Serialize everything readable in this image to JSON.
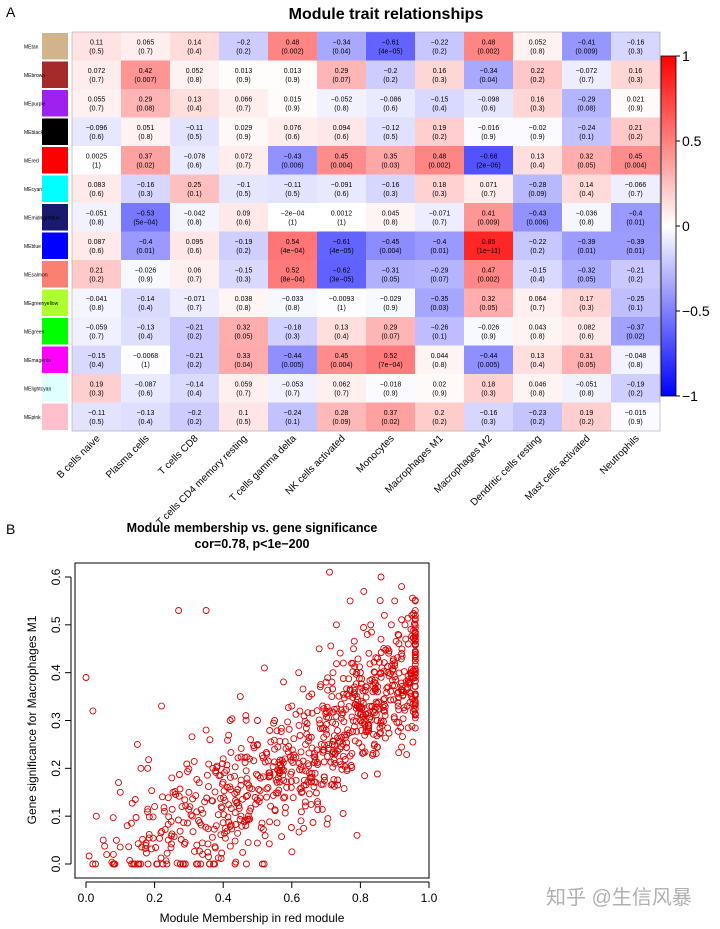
{
  "panel_labels": {
    "a": "A",
    "b": "B"
  },
  "watermark": "知乎 @生信风暴",
  "chart_data": [
    {
      "type": "heatmap",
      "title": "Module trait relationships",
      "rows": [
        "MEtan",
        "MEbrown",
        "MEpurple",
        "MEblack",
        "MEred",
        "MEcyan",
        "MEmidnightblue",
        "MEblue",
        "MEsalmon",
        "MEgreenyellow",
        "MEgreen",
        "MEmagenta",
        "MElightcyan",
        "MEpink"
      ],
      "row_colors": [
        "#d2b48c",
        "#a52a2a",
        "#a020f0",
        "#000000",
        "#ff0000",
        "#00ffff",
        "#191970",
        "#0000ff",
        "#fa8072",
        "#adff2f",
        "#00ff00",
        "#ff00ff",
        "#e0ffff",
        "#ffc0cb"
      ],
      "columns": [
        "B cells naive",
        "Plasma cells",
        "T cells CD8",
        "T cells CD4 memory resting",
        "T cells gamma delta",
        "NK cells activated",
        "Monocytes",
        "Macrophages M1",
        "Macrophages M2",
        "Dendritic cells resting",
        "Mast cells activated",
        "Neutrophils"
      ],
      "values": [
        [
          0.11,
          0.065,
          0.14,
          -0.2,
          0.48,
          -0.34,
          -0.61,
          -0.22,
          0.48,
          0.052,
          -0.41,
          -0.16
        ],
        [
          0.072,
          0.42,
          0.052,
          0.013,
          0.013,
          0.29,
          -0.2,
          0.16,
          -0.34,
          0.22,
          -0.072,
          0.16
        ],
        [
          0.055,
          0.29,
          0.13,
          0.066,
          0.015,
          -0.052,
          -0.086,
          -0.15,
          -0.098,
          0.16,
          -0.29,
          0.021
        ],
        [
          -0.096,
          0.051,
          -0.11,
          0.029,
          0.076,
          0.094,
          -0.12,
          0.19,
          -0.016,
          -0.02,
          -0.24,
          0.21
        ],
        [
          0.0025,
          0.37,
          -0.078,
          0.072,
          -0.43,
          0.45,
          0.35,
          0.48,
          -0.68,
          0.13,
          0.32,
          0.45
        ],
        [
          0.083,
          -0.16,
          0.25,
          -0.1,
          -0.11,
          -0.091,
          -0.16,
          0.18,
          0.071,
          -0.28,
          0.14,
          -0.066
        ],
        [
          -0.051,
          -0.53,
          -0.042,
          0.09,
          -0.0002,
          0.0012,
          0.045,
          -0.071,
          0.41,
          -0.43,
          -0.036,
          -0.4
        ],
        [
          0.087,
          -0.4,
          0.095,
          -0.19,
          0.54,
          -0.61,
          -0.45,
          -0.4,
          0.85,
          -0.22,
          -0.39,
          -0.39
        ],
        [
          0.21,
          -0.026,
          0.06,
          -0.15,
          0.52,
          -0.62,
          -0.31,
          -0.29,
          0.47,
          -0.15,
          -0.32,
          -0.21
        ],
        [
          -0.041,
          -0.14,
          -0.071,
          0.038,
          -0.033,
          -0.0093,
          -0.029,
          -0.35,
          0.32,
          0.064,
          0.17,
          -0.25
        ],
        [
          -0.059,
          -0.13,
          -0.21,
          0.32,
          -0.18,
          0.13,
          0.29,
          -0.26,
          -0.026,
          0.043,
          0.082,
          -0.37
        ],
        [
          -0.15,
          -0.0068,
          -0.21,
          0.33,
          -0.44,
          0.45,
          0.52,
          0.044,
          -0.44,
          0.13,
          0.31,
          -0.048
        ],
        [
          0.19,
          -0.087,
          -0.14,
          0.059,
          -0.053,
          0.062,
          -0.018,
          0.02,
          0.18,
          0.046,
          -0.051,
          -0.19
        ],
        [
          -0.11,
          -0.13,
          -0.2,
          0.1,
          -0.24,
          0.28,
          0.37,
          0.2,
          -0.16,
          -0.23,
          0.19,
          -0.015
        ]
      ],
      "value_labels": [
        [
          "0.11",
          "0.065",
          "0.14",
          "−0.2",
          "0.48",
          "−0.34",
          "−0.61",
          "−0.22",
          "0.48",
          "0.052",
          "−0.41",
          "−0.16"
        ],
        [
          "0.072",
          "0.42",
          "0.052",
          "0.013",
          "0.013",
          "0.29",
          "−0.2",
          "0.16",
          "−0.34",
          "0.22",
          "−0.072",
          "0.16"
        ],
        [
          "0.055",
          "0.29",
          "0.13",
          "0.066",
          "0.015",
          "−0.052",
          "−0.086",
          "−0.15",
          "−0.098",
          "0.16",
          "−0.29",
          "0.021"
        ],
        [
          "−0.096",
          "0.051",
          "−0.11",
          "0.029",
          "0.076",
          "0.094",
          "−0.12",
          "0.19",
          "−0.016",
          "−0.02",
          "−0.24",
          "0.21"
        ],
        [
          "0.0025",
          "0.37",
          "−0.078",
          "0.072",
          "−0.43",
          "0.45",
          "0.35",
          "0.48",
          "−0.68",
          "0.13",
          "0.32",
          "0.45"
        ],
        [
          "0.083",
          "−0.16",
          "0.25",
          "−0.1",
          "−0.11",
          "−0.091",
          "−0.16",
          "0.18",
          "0.071",
          "−0.28",
          "0.14",
          "−0.066"
        ],
        [
          "−0.051",
          "−0.53",
          "−0.042",
          "0.09",
          "−2e−04",
          "0.0012",
          "0.045",
          "−0.071",
          "0.41",
          "−0.43",
          "−0.036",
          "−0.4"
        ],
        [
          "0.087",
          "−0.4",
          "0.095",
          "−0.19",
          "0.54",
          "−0.61",
          "−0.45",
          "−0.4",
          "0.85",
          "−0.22",
          "−0.39",
          "−0.39"
        ],
        [
          "0.21",
          "−0.026",
          "0.06",
          "−0.15",
          "0.52",
          "−0.62",
          "−0.31",
          "−0.29",
          "0.47",
          "−0.15",
          "−0.32",
          "−0.21"
        ],
        [
          "−0.041",
          "−0.14",
          "−0.071",
          "0.038",
          "−0.033",
          "−0.0093",
          "−0.029",
          "−0.35",
          "0.32",
          "0.064",
          "0.17",
          "−0.25"
        ],
        [
          "−0.059",
          "−0.13",
          "−0.21",
          "0.32",
          "−0.18",
          "0.13",
          "0.29",
          "−0.26",
          "−0.026",
          "0.043",
          "0.082",
          "−0.37"
        ],
        [
          "−0.15",
          "−0.0068",
          "−0.21",
          "0.33",
          "−0.44",
          "0.45",
          "0.52",
          "0.044",
          "−0.44",
          "0.13",
          "0.31",
          "−0.048"
        ],
        [
          "0.19",
          "−0.087",
          "−0.14",
          "0.059",
          "−0.053",
          "0.062",
          "−0.018",
          "0.02",
          "0.18",
          "0.046",
          "−0.051",
          "−0.19"
        ],
        [
          "−0.11",
          "−0.13",
          "−0.2",
          "0.1",
          "−0.24",
          "0.28",
          "0.37",
          "0.2",
          "−0.16",
          "−0.23",
          "0.19",
          "−0.015"
        ]
      ],
      "pvalue_labels": [
        [
          "(0.5)",
          "(0.7)",
          "(0.4)",
          "(0.2)",
          "(0.002)",
          "(0.04)",
          "(4e−05)",
          "(0.2)",
          "(0.002)",
          "(0.8)",
          "(0.009)",
          "(0.3)"
        ],
        [
          "(0.7)",
          "(0.007)",
          "(0.8)",
          "(0.9)",
          "(0.9)",
          "(0.07)",
          "(0.2)",
          "(0.3)",
          "(0.04)",
          "(0.2)",
          "(0.7)",
          "(0.3)"
        ],
        [
          "(0.7)",
          "(0.08)",
          "(0.4)",
          "(0.7)",
          "(0.9)",
          "(0.8)",
          "(0.6)",
          "(0.4)",
          "(0.6)",
          "(0.3)",
          "(0.08)",
          "(0.9)"
        ],
        [
          "(0.6)",
          "(0.8)",
          "(0.5)",
          "(0.9)",
          "(0.6)",
          "(0.6)",
          "(0.5)",
          "(0.2)",
          "(0.9)",
          "(0.9)",
          "(0.1)",
          "(0.2)"
        ],
        [
          "(1)",
          "(0.02)",
          "(0.6)",
          "(0.7)",
          "(0.006)",
          "(0.004)",
          "(0.03)",
          "(0.002)",
          "(2e−06)",
          "(0.4)",
          "(0.05)",
          "(0.004)"
        ],
        [
          "(0.6)",
          "(0.3)",
          "(0.1)",
          "(0.5)",
          "(0.5)",
          "(0.6)",
          "(0.3)",
          "(0.3)",
          "(0.7)",
          "(0.09)",
          "(0.4)",
          "(0.7)"
        ],
        [
          "(0.8)",
          "(5e−04)",
          "(0.8)",
          "(0.6)",
          "(1)",
          "(1)",
          "(0.8)",
          "(0.7)",
          "(0.009)",
          "(0.006)",
          "(0.8)",
          "(0.01)"
        ],
        [
          "(0.6)",
          "(0.01)",
          "(0.6)",
          "(0.2)",
          "(4e−04)",
          "(4e−05)",
          "(0.004)",
          "(0.01)",
          "(1e−11)",
          "(0.2)",
          "(0.01)",
          "(0.01)"
        ],
        [
          "(0.2)",
          "(0.9)",
          "(0.7)",
          "(0.3)",
          "(8e−04)",
          "(3e−05)",
          "(0.05)",
          "(0.07)",
          "(0.002)",
          "(0.4)",
          "(0.05)",
          "(0.2)"
        ],
        [
          "(0.8)",
          "(0.4)",
          "(0.7)",
          "(0.8)",
          "(0.8)",
          "(1)",
          "(0.9)",
          "(0.03)",
          "(0.05)",
          "(0.7)",
          "(0.3)",
          "(0.1)"
        ],
        [
          "(0.7)",
          "(0.4)",
          "(0.2)",
          "(0.05)",
          "(0.3)",
          "(0.4)",
          "(0.07)",
          "(0.1)",
          "(0.9)",
          "(0.8)",
          "(0.6)",
          "(0.02)"
        ],
        [
          "(0.4)",
          "(1)",
          "(0.2)",
          "(0.04)",
          "(0.005)",
          "(0.004)",
          "(7e−04)",
          "(0.8)",
          "(0.005)",
          "(0.4)",
          "(0.05)",
          "(0.8)"
        ],
        [
          "(0.3)",
          "(0.6)",
          "(0.4)",
          "(0.7)",
          "(0.7)",
          "(0.7)",
          "(0.9)",
          "(0.9)",
          "(0.3)",
          "(0.8)",
          "(0.8)",
          "(0.2)"
        ],
        [
          "(0.5)",
          "(0.4)",
          "(0.2)",
          "(0.5)",
          "(0.1)",
          "(0.09)",
          "(0.02)",
          "(0.2)",
          "(0.3)",
          "(0.2)",
          "(0.2)",
          "(0.9)"
        ]
      ],
      "color_scale": {
        "low": "#0000ff",
        "mid": "#ffffff",
        "high": "#ff0000",
        "range": [
          -1,
          1
        ],
        "ticks": [
          "1",
          "0.5",
          "0",
          "−0.5",
          "−1"
        ]
      }
    },
    {
      "type": "scatter",
      "title": "Module membership vs. gene significance",
      "subtitle": "cor=0.78, p<1e−200",
      "xlabel": "Module Membership in red module",
      "ylabel": "Gene significance for  Macrophages M1",
      "xlim": [
        0,
        1.0
      ],
      "ylim": [
        0,
        0.6
      ],
      "xticks": [
        "0.0",
        "0.2",
        "0.4",
        "0.6",
        "0.8",
        "1.0"
      ],
      "yticks": [
        "0.0",
        "0.1",
        "0.2",
        "0.3",
        "0.4",
        "0.5",
        "0.6"
      ],
      "point_color": "#dd0000",
      "points": {
        "x": [
          0.05,
          0.12,
          0.2,
          0.3,
          0.4,
          0.5,
          0.55,
          0.6,
          0.65,
          0.7,
          0.72,
          0.75,
          0.78,
          0.8,
          0.82,
          0.83,
          0.85,
          0.86,
          0.87,
          0.88,
          0.89,
          0.9,
          0.91,
          0.92,
          0.93,
          0.94,
          0.95,
          0.18,
          0.25,
          0.35,
          0.42,
          0.48,
          0.58,
          0.62,
          0.68,
          0.73,
          0.79,
          0.84,
          0.9,
          0.0,
          0.03,
          0.08,
          0.15,
          0.22,
          0.28,
          0.33,
          0.38,
          0.45,
          0.52,
          0.7,
          0.77,
          0.81,
          0.86,
          0.92,
          0.96,
          0.02,
          0.1,
          0.16,
          0.24,
          0.31,
          0.37,
          0.44,
          0.5,
          0.56,
          0.64,
          0.71,
          0.76,
          0.8,
          0.85,
          0.88,
          0.91,
          0.94,
          0.27,
          0.35,
          0.71,
          0.79
        ],
        "y": [
          0.05,
          0.08,
          0.12,
          0.15,
          0.22,
          0.25,
          0.3,
          0.33,
          0.35,
          0.38,
          0.4,
          0.42,
          0.45,
          0.4,
          0.48,
          0.5,
          0.43,
          0.47,
          0.52,
          0.45,
          0.5,
          0.55,
          0.48,
          0.44,
          0.5,
          0.46,
          0.52,
          0.2,
          0.18,
          0.28,
          0.3,
          0.26,
          0.22,
          0.4,
          0.45,
          0.5,
          0.35,
          0.38,
          0.42,
          0.39,
          0.1,
          0.02,
          0.25,
          0.33,
          0.12,
          0.17,
          0.08,
          0.35,
          0.41,
          0.28,
          0.55,
          0.57,
          0.6,
          0.58,
          0.55,
          0.32,
          0.15,
          0.2,
          0.05,
          0.1,
          0.2,
          0.15,
          0.3,
          0.18,
          0.25,
          0.32,
          0.27,
          0.3,
          0.36,
          0.4,
          0.33,
          0.38,
          0.53,
          0.53,
          0.61,
          0.06
        ]
      }
    }
  ]
}
